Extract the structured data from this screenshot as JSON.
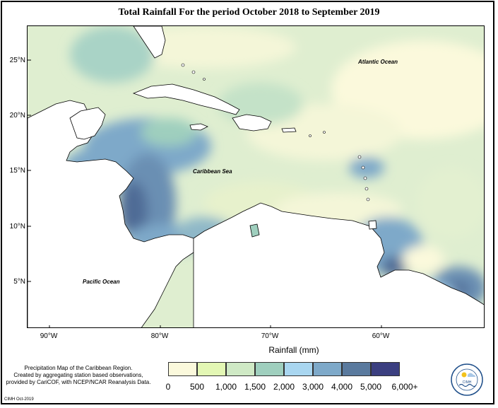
{
  "title": "Total Rainfall For the period October 2018 to September 2019",
  "map": {
    "lat_labels": [
      "25°N",
      "20°N",
      "15°N",
      "10°N",
      "5°N"
    ],
    "lon_labels": [
      "90°W",
      "80°W",
      "70°W",
      "60°W"
    ],
    "place_labels": {
      "atlantic": "Atlantic Ocean",
      "caribbean": "Caribbean Sea",
      "pacific": "Pacific Ocean"
    }
  },
  "legend": {
    "title": "Rainfall (mm)",
    "colors": [
      "#fbf9dc",
      "#e3f7b4",
      "#cfe9c5",
      "#9fcfbe",
      "#a9d6f0",
      "#7ea9c9",
      "#5a7a9e",
      "#3b3f80"
    ],
    "tick_labels": [
      "0",
      "500",
      "1,000",
      "1,500",
      "2,000",
      "3,000",
      "4,000",
      "5,000",
      "6,000+"
    ]
  },
  "credits": {
    "line1": "Precipitation Map of the Caribbean Region.",
    "line2": "Created by aggregating station based observations,",
    "line3": "provided by CariCOF, with NCEP/NCAR Reanalysis Data.",
    "footer": "CIMH Oct-2019"
  },
  "logo": {
    "text": "CIMH"
  }
}
